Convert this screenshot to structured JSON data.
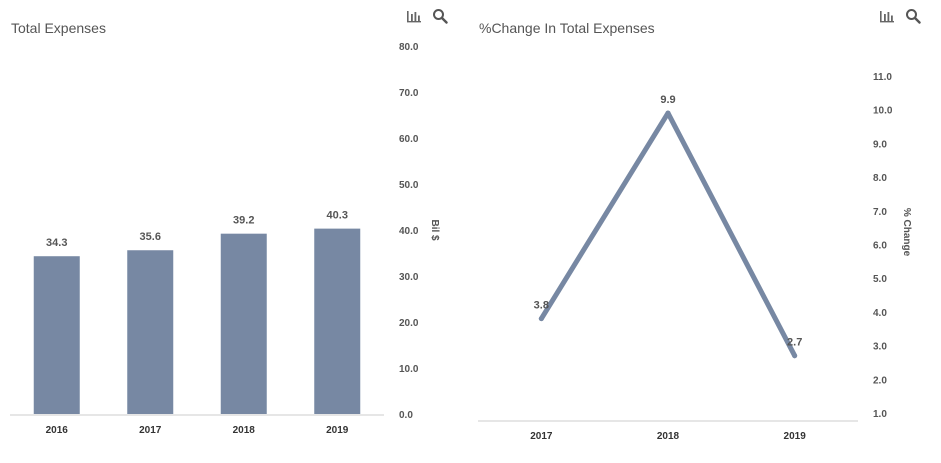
{
  "charts": [
    {
      "title": "Total Expenses",
      "toolbar": {
        "chart_icon": "bar-chart-icon",
        "search_icon": "search-icon"
      },
      "colors": {
        "bar": "#7788a3",
        "axis": "#cccccc"
      }
    },
    {
      "title": "%Change In Total Expenses",
      "toolbar": {
        "chart_icon": "bar-chart-icon",
        "search_icon": "search-icon"
      },
      "colors": {
        "line": "#7788a3",
        "axis": "#cccccc"
      }
    }
  ],
  "chart_data": [
    {
      "type": "bar",
      "title": "Total Expenses",
      "categories": [
        "2016",
        "2017",
        "2018",
        "2019"
      ],
      "values": [
        34.3,
        35.6,
        39.2,
        40.3
      ],
      "value_labels": [
        "34.3",
        "35.6",
        "39.2",
        "40.3"
      ],
      "ylabel": "Bil $",
      "yaxis_position": "right",
      "ylim": [
        0,
        80
      ],
      "yticks": [
        "0.0",
        "10.0",
        "20.0",
        "30.0",
        "40.0",
        "50.0",
        "60.0",
        "70.0",
        "80.0"
      ],
      "grid": false
    },
    {
      "type": "line",
      "title": "%Change In Total Expenses",
      "categories": [
        "2017",
        "2018",
        "2019"
      ],
      "values": [
        3.8,
        9.9,
        2.7
      ],
      "value_labels": [
        "3.8",
        "9.9",
        "2.7"
      ],
      "ylabel": "% Change",
      "yaxis_position": "right",
      "ylim": [
        1,
        11
      ],
      "yticks": [
        "1.0",
        "2.0",
        "3.0",
        "4.0",
        "5.0",
        "6.0",
        "7.0",
        "8.0",
        "9.0",
        "10.0",
        "11.0"
      ],
      "grid": false
    }
  ]
}
